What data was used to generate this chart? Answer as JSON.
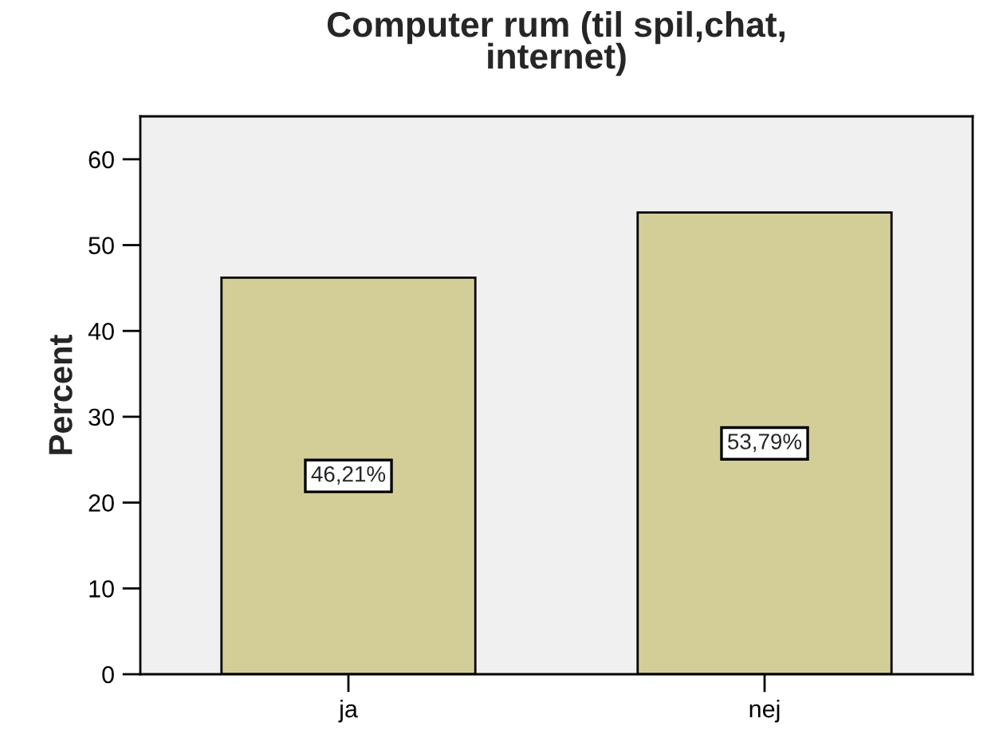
{
  "chart_data": {
    "type": "bar",
    "title": "Computer rum (til spil,chat,\ninternet)",
    "ylabel": "Percent",
    "categories": [
      "ja",
      "nej"
    ],
    "values": [
      46.21,
      53.79
    ],
    "value_labels": [
      "46,21%",
      "53,79%"
    ],
    "color": "#d3ce98",
    "ylim": [
      0,
      65
    ],
    "yticks": [
      0,
      10,
      20,
      30,
      40,
      50,
      60
    ],
    "grid": false,
    "legend": false
  }
}
